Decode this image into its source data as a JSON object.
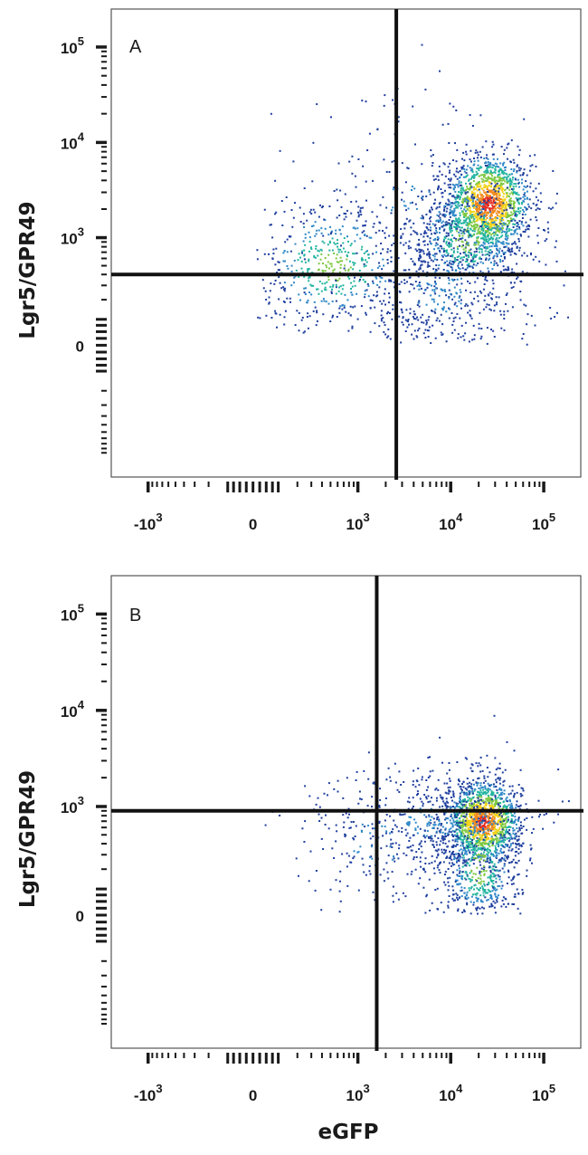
{
  "chart_data": [
    {
      "type": "scatter",
      "panel_label": "A",
      "xlabel": "",
      "ylabel": "Lgr5/GPR49",
      "x_scale": "biexponential",
      "y_scale": "biexponential",
      "x_ticks": [
        {
          "value": -1000,
          "base": "-10",
          "exp": "3"
        },
        {
          "value": 0,
          "base": "0",
          "exp": ""
        },
        {
          "value": 1000,
          "base": "10",
          "exp": "3"
        },
        {
          "value": 10000,
          "base": "10",
          "exp": "4"
        },
        {
          "value": 100000,
          "base": "10",
          "exp": "5"
        }
      ],
      "y_ticks": [
        {
          "value": 0,
          "base": "0",
          "exp": ""
        },
        {
          "value": 1000,
          "base": "10",
          "exp": "3"
        },
        {
          "value": 10000,
          "base": "10",
          "exp": "4"
        },
        {
          "value": 100000,
          "base": "10",
          "exp": "5"
        }
      ],
      "xlim": [
        -2500,
        250000
      ],
      "ylim": [
        -1800,
        250000
      ],
      "gate": {
        "x": 2600,
        "y": 400
      },
      "populations": [
        {
          "cx": 25000,
          "cy": 2300,
          "sx": 0.23,
          "sy": 0.26,
          "n": 1400,
          "density": "high"
        },
        {
          "cx": 15000,
          "cy": 1000,
          "sx": 0.33,
          "sy": 0.32,
          "n": 600,
          "density": "mid"
        },
        {
          "cx": 500,
          "cy": 500,
          "sx": 0.5,
          "sy": 0.38,
          "n": 500,
          "density": "mid"
        },
        {
          "cx": 8000,
          "cy": 250,
          "sx": 0.55,
          "sy": 0.48,
          "n": 420,
          "density": "low"
        },
        {
          "cx": 3000,
          "cy": 2500,
          "sx": 0.55,
          "sy": 0.55,
          "n": 150,
          "density": "low"
        }
      ]
    },
    {
      "type": "scatter",
      "panel_label": "B",
      "xlabel": "eGFP",
      "ylabel": "Lgr5/GPR49",
      "x_scale": "biexponential",
      "y_scale": "biexponential",
      "x_ticks": [
        {
          "value": -1000,
          "base": "-10",
          "exp": "3"
        },
        {
          "value": 0,
          "base": "0",
          "exp": ""
        },
        {
          "value": 1000,
          "base": "10",
          "exp": "3"
        },
        {
          "value": 10000,
          "base": "10",
          "exp": "4"
        },
        {
          "value": 100000,
          "base": "10",
          "exp": "5"
        }
      ],
      "y_ticks": [
        {
          "value": 0,
          "base": "0",
          "exp": ""
        },
        {
          "value": 1000,
          "base": "10",
          "exp": "3"
        },
        {
          "value": 10000,
          "base": "10",
          "exp": "4"
        },
        {
          "value": 100000,
          "base": "10",
          "exp": "5"
        }
      ],
      "xlim": [
        -2500,
        250000
      ],
      "ylim": [
        -1800,
        250000
      ],
      "gate": {
        "x": 1600,
        "y": 900
      },
      "populations": [
        {
          "cx": 22000,
          "cy": 700,
          "sx": 0.2,
          "sy": 0.22,
          "n": 1400,
          "density": "high"
        },
        {
          "cx": 20000,
          "cy": 200,
          "sx": 0.22,
          "sy": 0.5,
          "n": 500,
          "density": "mid"
        },
        {
          "cx": 6000,
          "cy": 700,
          "sx": 0.5,
          "sy": 0.3,
          "n": 420,
          "density": "low"
        },
        {
          "cx": 1500,
          "cy": 400,
          "sx": 0.55,
          "sy": 0.45,
          "n": 160,
          "density": "low"
        }
      ]
    }
  ],
  "colors": {
    "low": "#1f3f9e",
    "mid": "#2f88c8",
    "teal": "#22b4a0",
    "green": "#7ec842",
    "yellow": "#f2d21a",
    "orange": "#f08a1c",
    "red": "#e52b1e",
    "axis": "#1a1a1a"
  }
}
